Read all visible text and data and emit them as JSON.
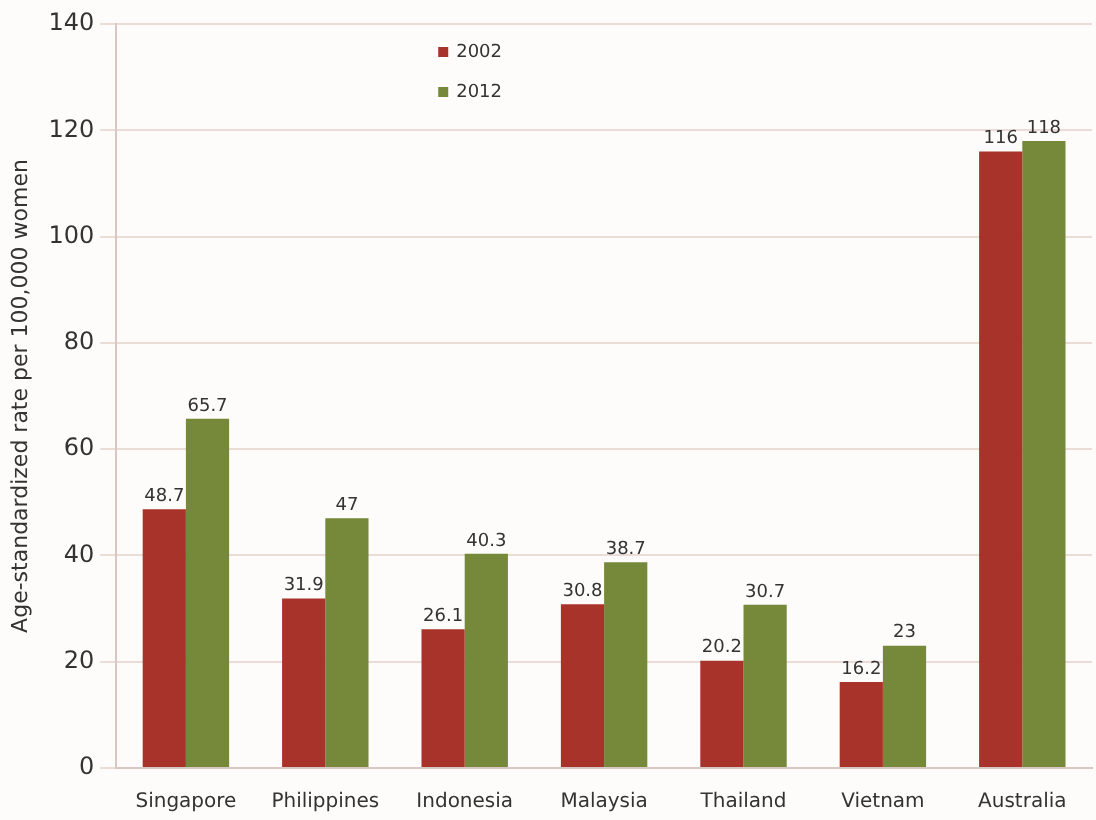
{
  "chart_data": {
    "type": "bar",
    "ylabel": "Age-standardized rate per 100,000 women",
    "categories": [
      "Singapore",
      "Philippines",
      "Indonesia",
      "Malaysia",
      "Thailand",
      "Vietnam",
      "Australia"
    ],
    "series": [
      {
        "name": "2002",
        "color": "#a8332a",
        "values": [
          48.7,
          31.9,
          26.1,
          30.8,
          20.2,
          16.2,
          116
        ]
      },
      {
        "name": "2012",
        "color": "#76883a",
        "values": [
          65.7,
          47,
          40.3,
          38.7,
          30.7,
          23,
          118
        ]
      }
    ],
    "ylim": [
      0,
      140
    ],
    "yticks": [
      0,
      20,
      40,
      60,
      80,
      100,
      120,
      140
    ],
    "grid": "y",
    "legend": "top",
    "data_labels": true
  }
}
